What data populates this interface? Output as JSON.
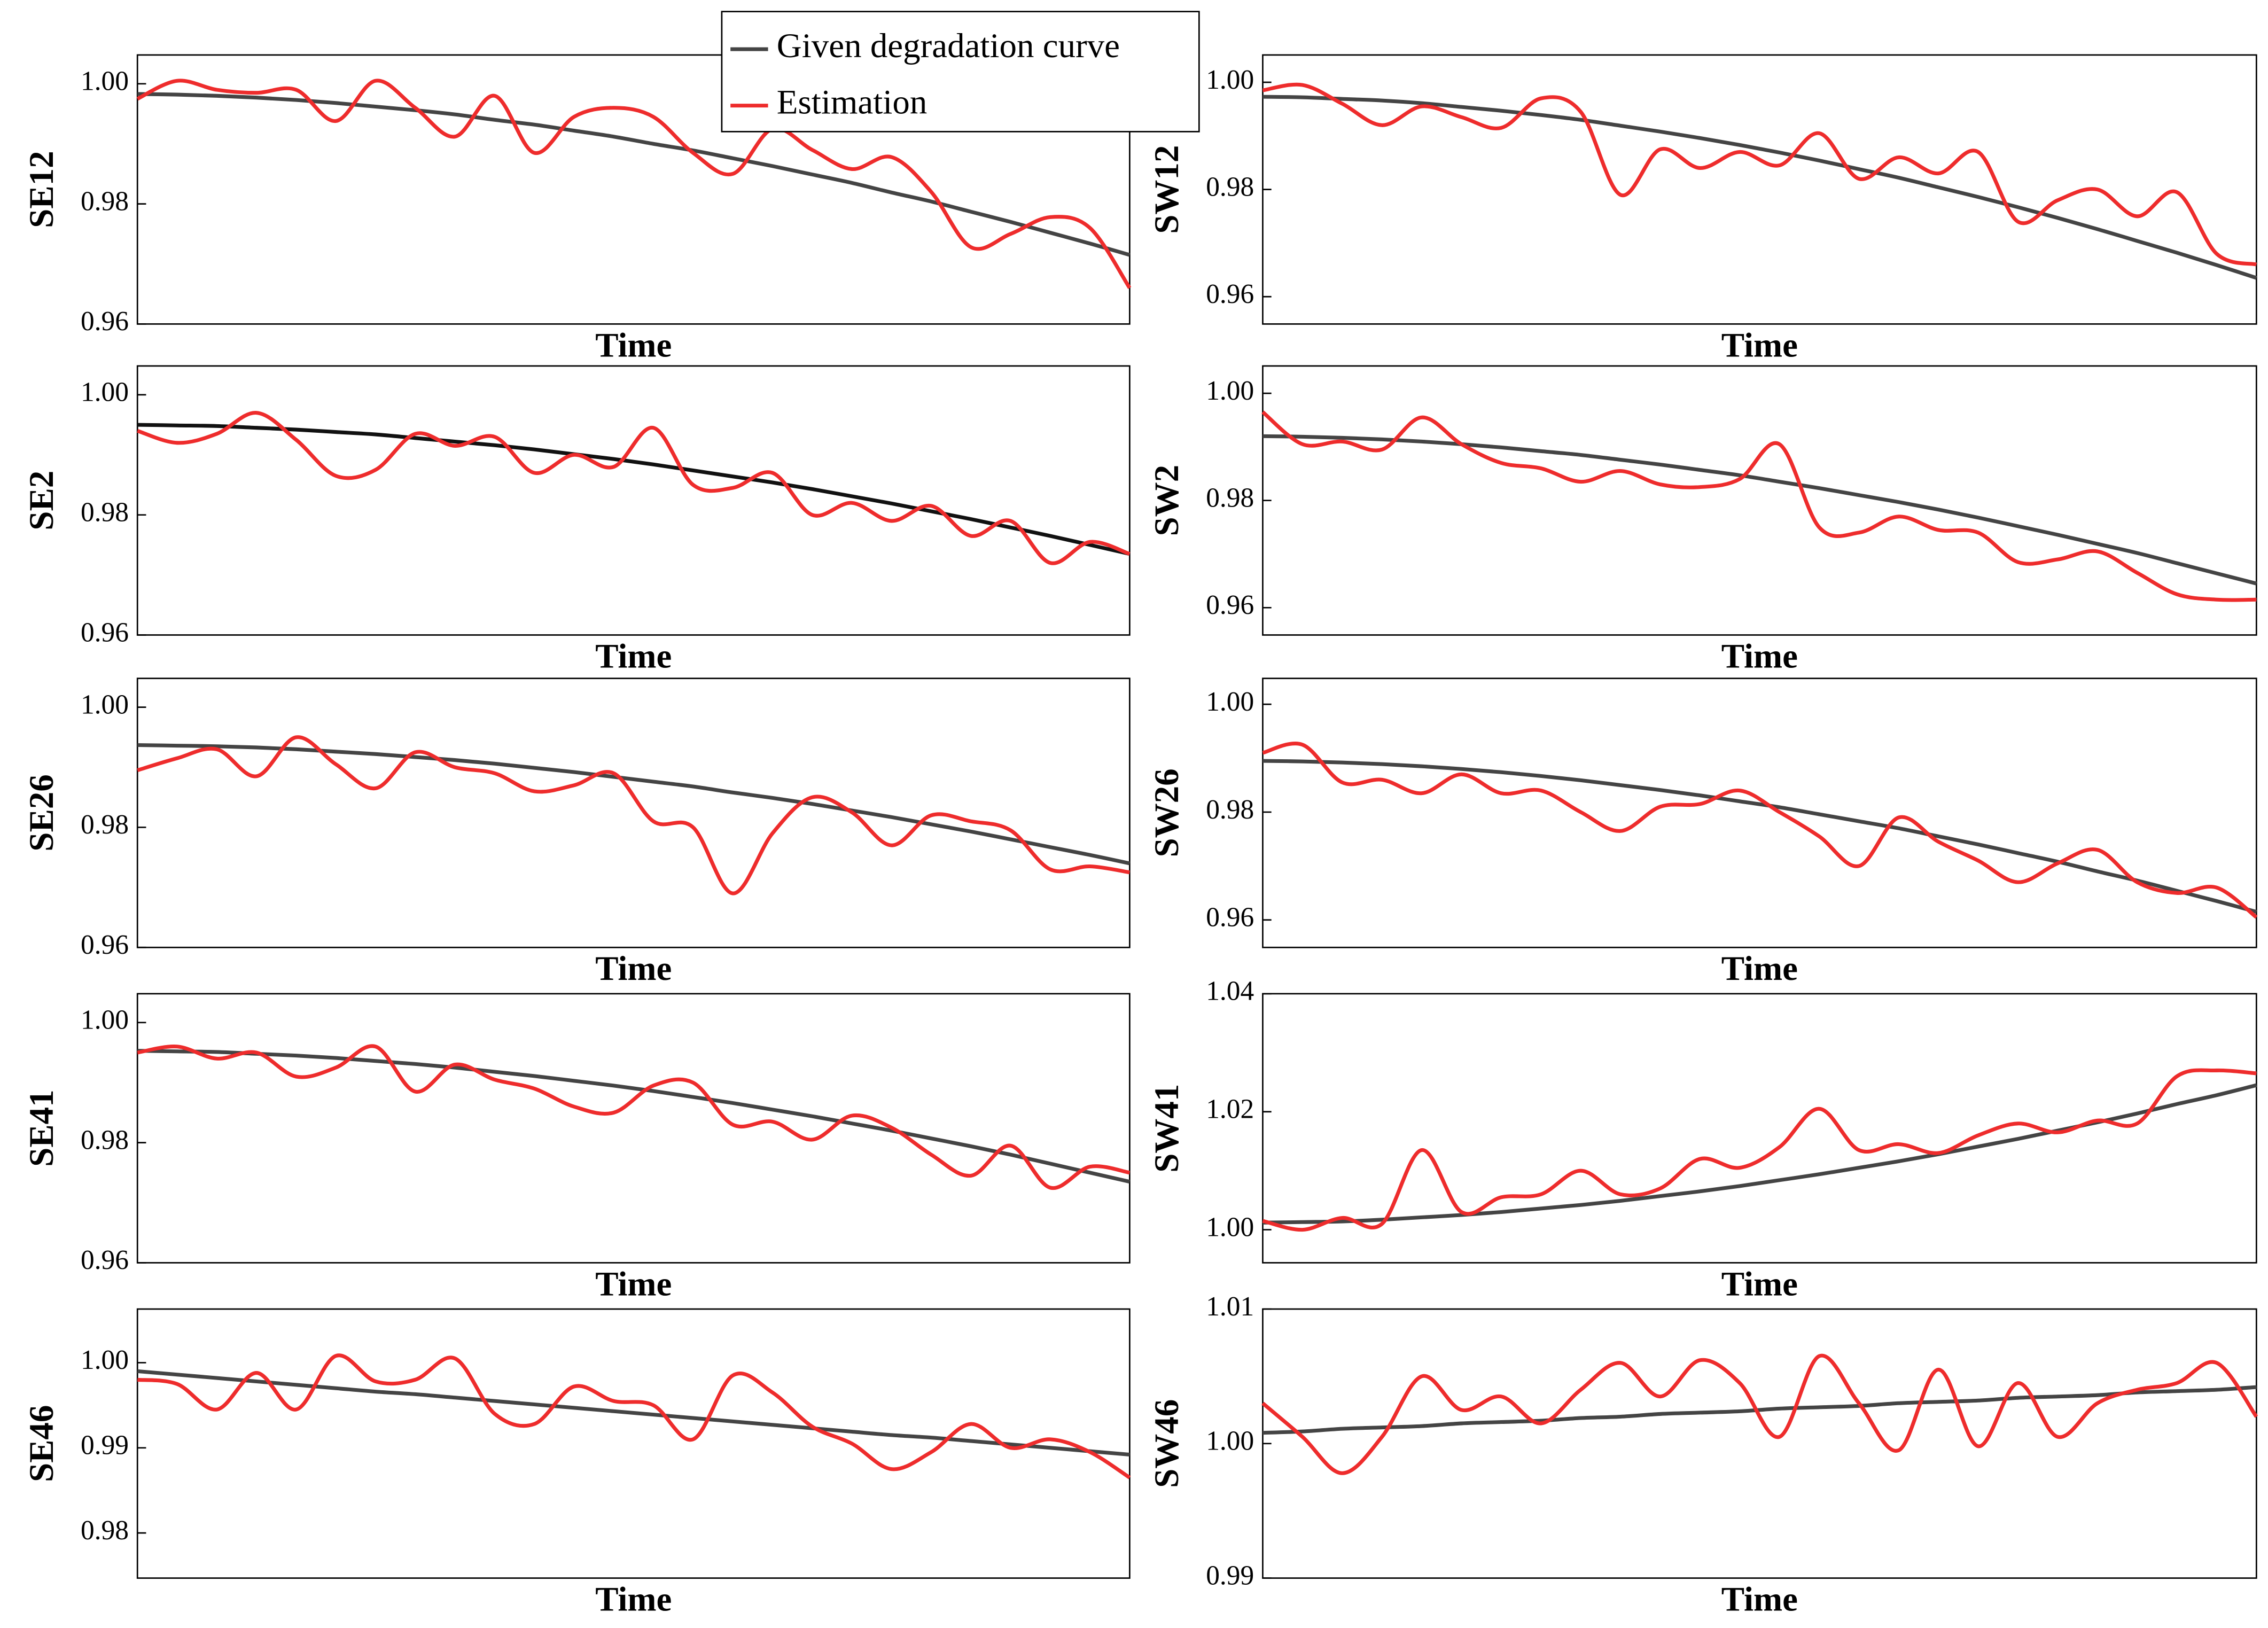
{
  "chart_data": [
    {
      "type": "line",
      "ylabel": "SE12",
      "xlabel": "Time",
      "ylim": [
        0.96,
        1.0048
      ],
      "yticks": [
        0.96,
        0.98,
        {
          "value": 1,
          "label": "1.00"
        }
      ],
      "series": [
        {
          "name": "Given degradation curve",
          "color": "#444444",
          "values": [
            0.9983,
            0.9982,
            0.998,
            0.9977,
            0.9973,
            0.9968,
            0.9962,
            0.9956,
            0.9949,
            0.994,
            0.9932,
            0.9922,
            0.9912,
            0.99,
            0.9889,
            0.9876,
            0.9863,
            0.9849,
            0.9835,
            0.9819,
            0.9804,
            0.9787,
            0.977,
            0.9752,
            0.9734,
            0.9715
          ]
        },
        {
          "name": "Estimation",
          "color": "#ee2c2c",
          "values": [
            0.9975,
            1.0005,
            0.999,
            0.9985,
            0.999,
            0.9938,
            1.0005,
            0.996,
            0.9912,
            0.998,
            0.9885,
            0.9945,
            0.996,
            0.9945,
            0.9885,
            0.985,
            0.9925,
            0.989,
            0.9858,
            0.9878,
            0.982,
            0.9728,
            0.975,
            0.9778,
            0.976,
            0.966
          ]
        }
      ]
    },
    {
      "type": "line",
      "ylabel": "SW12",
      "xlabel": "Time",
      "ylim": [
        0.9549,
        1.0051
      ],
      "yticks": [
        0.96,
        0.98,
        {
          "value": 1,
          "label": "1.00"
        }
      ],
      "series": [
        {
          "name": "Given degradation curve",
          "color": "#444444",
          "values": [
            0.9973,
            0.9972,
            0.9969,
            0.9966,
            0.9961,
            0.9954,
            0.9947,
            0.9939,
            0.993,
            0.9919,
            0.9908,
            0.9896,
            0.9883,
            0.9869,
            0.9854,
            0.9838,
            0.9822,
            0.9804,
            0.9786,
            0.9767,
            0.9747,
            0.9726,
            0.9704,
            0.9682,
            0.9659,
            0.9635
          ]
        },
        {
          "name": "Estimation",
          "color": "#ee2c2c",
          "values": [
            0.9985,
            0.9995,
            0.996,
            0.992,
            0.9955,
            0.9935,
            0.9915,
            0.997,
            0.9945,
            0.979,
            0.9875,
            0.984,
            0.987,
            0.9845,
            0.9905,
            0.982,
            0.986,
            0.983,
            0.987,
            0.974,
            0.978,
            0.98,
            0.975,
            0.9795,
            0.968,
            0.966
          ]
        }
      ]
    },
    {
      "type": "line",
      "ylabel": "SE2",
      "xlabel": "Time",
      "ylim": [
        0.96,
        1.0048
      ],
      "yticks": [
        0.96,
        0.98,
        {
          "value": 1,
          "label": "1.00"
        }
      ],
      "series": [
        {
          "name": "Given degradation curve",
          "color": "#111111",
          "values": [
            0.995,
            0.9949,
            0.9948,
            0.9945,
            0.9942,
            0.9938,
            0.9934,
            0.9928,
            0.9922,
            0.9916,
            0.9909,
            0.9901,
            0.9893,
            0.9884,
            0.9874,
            0.9864,
            0.9854,
            0.9843,
            0.9831,
            0.9819,
            0.9806,
            0.9793,
            0.9779,
            0.9765,
            0.975,
            0.9735
          ]
        },
        {
          "name": "Estimation",
          "color": "#ee2c2c",
          "values": [
            0.994,
            0.992,
            0.9935,
            0.997,
            0.9925,
            0.9865,
            0.9875,
            0.9935,
            0.9915,
            0.993,
            0.987,
            0.99,
            0.988,
            0.9945,
            0.985,
            0.9845,
            0.987,
            0.98,
            0.982,
            0.979,
            0.9815,
            0.9765,
            0.979,
            0.972,
            0.9755,
            0.9735
          ]
        }
      ]
    },
    {
      "type": "line",
      "ylabel": "SW2",
      "xlabel": "Time",
      "ylim": [
        0.9549,
        1.0051
      ],
      "yticks": [
        0.96,
        0.98,
        {
          "value": 1,
          "label": "1.00"
        }
      ],
      "series": [
        {
          "name": "Given degradation curve",
          "color": "#444444",
          "values": [
            0.992,
            0.9919,
            0.9917,
            0.9914,
            0.991,
            0.9905,
            0.9899,
            0.9892,
            0.9885,
            0.9876,
            0.9867,
            0.9857,
            0.9847,
            0.9835,
            0.9823,
            0.981,
            0.9797,
            0.9783,
            0.9768,
            0.9752,
            0.9736,
            0.9719,
            0.9702,
            0.9683,
            0.9664,
            0.9645
          ]
        },
        {
          "name": "Estimation",
          "color": "#ee2c2c",
          "values": [
            0.9965,
            0.9905,
            0.991,
            0.9895,
            0.9955,
            0.9905,
            0.987,
            0.986,
            0.9835,
            0.9855,
            0.983,
            0.9825,
            0.984,
            0.9905,
            0.975,
            0.974,
            0.977,
            0.9745,
            0.974,
            0.9685,
            0.969,
            0.9705,
            0.9665,
            0.9625,
            0.9615,
            0.9615
          ]
        }
      ]
    },
    {
      "type": "line",
      "ylabel": "SE26",
      "xlabel": "Time",
      "ylim": [
        0.96,
        1.0048
      ],
      "yticks": [
        0.96,
        0.98,
        {
          "value": 1,
          "label": "1.00"
        }
      ],
      "series": [
        {
          "name": "Given degradation curve",
          "color": "#444444",
          "values": [
            0.9937,
            0.9936,
            0.9935,
            0.9933,
            0.993,
            0.9926,
            0.9922,
            0.9917,
            0.9912,
            0.9906,
            0.9899,
            0.9892,
            0.9884,
            0.9876,
            0.9868,
            0.9858,
            0.9849,
            0.9839,
            0.9828,
            0.9817,
            0.9805,
            0.9793,
            0.978,
            0.9767,
            0.9754,
            0.974
          ]
        },
        {
          "name": "Estimation",
          "color": "#ee2c2c",
          "values": [
            0.9895,
            0.9915,
            0.993,
            0.9885,
            0.995,
            0.9905,
            0.9865,
            0.9925,
            0.99,
            0.989,
            0.986,
            0.987,
            0.989,
            0.981,
            0.98,
            0.969,
            0.979,
            0.985,
            0.9825,
            0.977,
            0.982,
            0.981,
            0.9795,
            0.973,
            0.9735,
            0.9725
          ]
        }
      ]
    },
    {
      "type": "line",
      "ylabel": "SW26",
      "xlabel": "Time",
      "ylim": [
        0.9549,
        1.0048
      ],
      "yticks": [
        0.96,
        0.98,
        {
          "value": 1,
          "label": "1.00"
        }
      ],
      "series": [
        {
          "name": "Given degradation curve",
          "color": "#444444",
          "values": [
            0.9895,
            0.9894,
            0.9892,
            0.9889,
            0.9885,
            0.988,
            0.9874,
            0.9867,
            0.9859,
            0.985,
            0.9841,
            0.9831,
            0.982,
            0.9809,
            0.9796,
            0.9783,
            0.977,
            0.9755,
            0.974,
            0.9724,
            0.9708,
            0.969,
            0.9673,
            0.9654,
            0.9635,
            0.9615
          ]
        },
        {
          "name": "Estimation",
          "color": "#ee2c2c",
          "values": [
            0.991,
            0.9925,
            0.9855,
            0.986,
            0.9835,
            0.987,
            0.9835,
            0.984,
            0.98,
            0.9765,
            0.981,
            0.9815,
            0.984,
            0.98,
            0.9755,
            0.97,
            0.979,
            0.9745,
            0.971,
            0.967,
            0.9705,
            0.973,
            0.967,
            0.965,
            0.966,
            0.9605
          ]
        }
      ]
    },
    {
      "type": "line",
      "ylabel": "SE41",
      "xlabel": "Time",
      "ylim": [
        0.96,
        1.0048
      ],
      "yticks": [
        0.96,
        0.98,
        {
          "value": 1,
          "label": "1.00"
        }
      ],
      "series": [
        {
          "name": "Given degradation curve",
          "color": "#444444",
          "values": [
            0.9953,
            0.9952,
            0.9951,
            0.9948,
            0.9945,
            0.9941,
            0.9936,
            0.9931,
            0.9925,
            0.9918,
            0.9911,
            0.9903,
            0.9895,
            0.9886,
            0.9876,
            0.9866,
            0.9855,
            0.9844,
            0.9832,
            0.982,
            0.9807,
            0.9794,
            0.978,
            0.9765,
            0.975,
            0.9735
          ]
        },
        {
          "name": "Estimation",
          "color": "#ee2c2c",
          "values": [
            0.995,
            0.996,
            0.994,
            0.995,
            0.991,
            0.9925,
            0.996,
            0.9885,
            0.993,
            0.9905,
            0.989,
            0.986,
            0.985,
            0.9895,
            0.99,
            0.983,
            0.9835,
            0.9805,
            0.9845,
            0.9825,
            0.978,
            0.9745,
            0.9795,
            0.9725,
            0.976,
            0.975
          ]
        }
      ]
    },
    {
      "type": "line",
      "ylabel": "SW41",
      "xlabel": "Time",
      "ylim": [
        0.9944,
        1.04
      ],
      "yticks": [
        {
          "value": 1,
          "label": "1.00"
        },
        1.02,
        1.04
      ],
      "series": [
        {
          "name": "Given degradation curve",
          "color": "#444444",
          "values": [
            1.0012,
            1.0013,
            1.0014,
            1.0017,
            1.0021,
            1.0025,
            1.003,
            1.0036,
            1.0042,
            1.0049,
            1.0057,
            1.0065,
            1.0074,
            1.0084,
            1.0094,
            1.0105,
            1.0116,
            1.0128,
            1.0141,
            1.0154,
            1.0168,
            1.0182,
            1.0197,
            1.0213,
            1.0228,
            1.0245
          ]
        },
        {
          "name": "Estimation",
          "color": "#ee2c2c",
          "values": [
            1.0015,
            1.0,
            1.002,
            1.001,
            1.0135,
            1.003,
            1.0055,
            1.006,
            1.01,
            1.006,
            1.007,
            1.012,
            1.0105,
            1.014,
            1.0205,
            1.0135,
            1.0145,
            1.013,
            1.016,
            1.018,
            1.0165,
            1.0185,
            1.018,
            1.026,
            1.027,
            1.0265
          ]
        }
      ]
    },
    {
      "type": "line",
      "ylabel": "SE46",
      "xlabel": "Time",
      "ylim": [
        0.9747,
        1.0063
      ],
      "yticks": [
        0.98,
        0.99,
        {
          "value": 1,
          "label": "1.00"
        }
      ],
      "series": [
        {
          "name": "Given degradation curve",
          "color": "#444444",
          "values": [
            0.999,
            0.9986,
            0.9982,
            0.9978,
            0.9974,
            0.997,
            0.9966,
            0.9963,
            0.9959,
            0.9955,
            0.9951,
            0.9947,
            0.9943,
            0.9939,
            0.9935,
            0.9931,
            0.9927,
            0.9923,
            0.9919,
            0.9915,
            0.9912,
            0.9908,
            0.9904,
            0.99,
            0.9896,
            0.9892
          ]
        },
        {
          "name": "Estimation",
          "color": "#ee2c2c",
          "values": [
            0.998,
            0.9975,
            0.9945,
            0.9988,
            0.9945,
            1.0008,
            0.9978,
            0.998,
            1.0005,
            0.994,
            0.9928,
            0.9972,
            0.9955,
            0.995,
            0.991,
            0.9985,
            0.9965,
            0.9925,
            0.9905,
            0.9875,
            0.9895,
            0.9928,
            0.99,
            0.991,
            0.9895,
            0.9865
          ]
        }
      ]
    },
    {
      "type": "line",
      "ylabel": "SW46",
      "xlabel": "Time",
      "ylim": [
        0.99,
        1.01
      ],
      "yticks": [
        0.99,
        {
          "value": 1,
          "label": "1.00"
        },
        1.01
      ],
      "series": [
        {
          "name": "Given degradation curve",
          "color": "#444444",
          "values": [
            1.0008,
            1.0009,
            1.0011,
            1.0012,
            1.0013,
            1.0015,
            1.0016,
            1.0017,
            1.0019,
            1.002,
            1.0022,
            1.0023,
            1.0024,
            1.0026,
            1.0027,
            1.0028,
            1.003,
            1.0031,
            1.0032,
            1.0034,
            1.0035,
            1.0036,
            1.0038,
            1.0039,
            1.004,
            1.0042
          ]
        },
        {
          "name": "Estimation",
          "color": "#ee2c2c",
          "values": [
            1.003,
            1.0005,
            0.9978,
            1.0005,
            1.005,
            1.0025,
            1.0035,
            1.0015,
            1.004,
            1.006,
            1.0035,
            1.0062,
            1.0045,
            1.0005,
            1.0065,
            1.003,
            0.9995,
            1.0055,
            0.9998,
            1.0045,
            1.0005,
            1.003,
            1.004,
            1.0045,
            1.006,
            1.002
          ]
        }
      ]
    }
  ]
}
